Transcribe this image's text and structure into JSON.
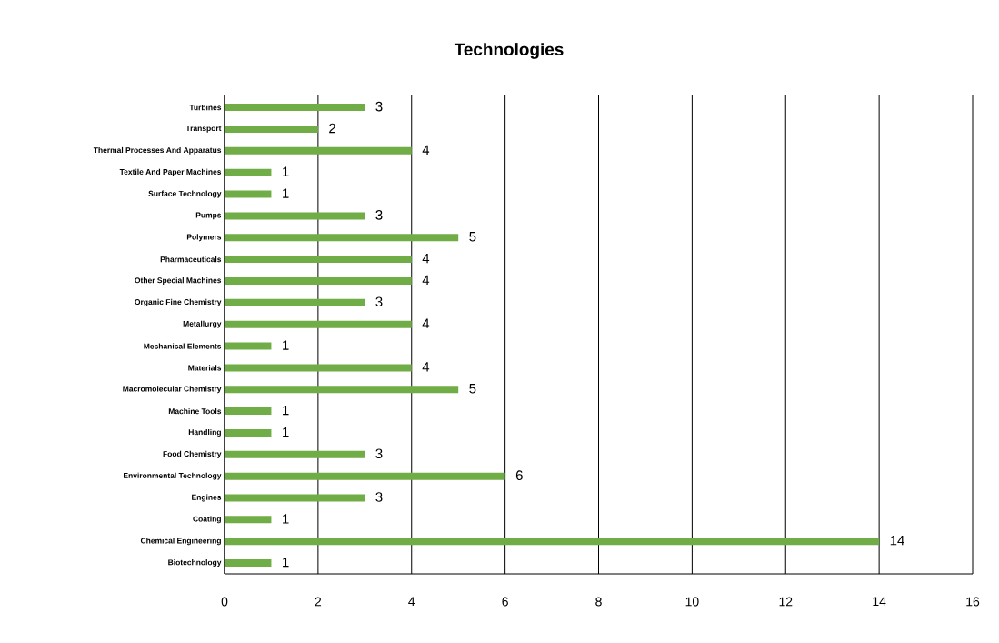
{
  "chart_data": {
    "type": "bar",
    "orientation": "horizontal",
    "title": "Technologies",
    "categories": [
      "Turbines",
      "Transport",
      "Thermal Processes And Apparatus",
      "Textile And Paper Machines",
      "Surface Technology",
      "Pumps",
      "Polymers",
      "Pharmaceuticals",
      "Other Special Machines",
      "Organic Fine Chemistry",
      "Metallurgy",
      "Mechanical Elements",
      "Materials",
      "Macromolecular Chemistry",
      "Machine Tools",
      "Handling",
      "Food Chemistry",
      "Environmental Technology",
      "Engines",
      "Coating",
      "Chemical Engineering",
      "Biotechnology"
    ],
    "values": [
      3,
      2,
      4,
      1,
      1,
      3,
      5,
      4,
      4,
      3,
      4,
      1,
      4,
      5,
      1,
      1,
      3,
      6,
      3,
      1,
      14,
      1
    ],
    "color": "#70ad47",
    "xlim": [
      0,
      16
    ],
    "xticks": [
      0,
      2,
      4,
      6,
      8,
      10,
      12,
      14,
      16
    ],
    "grid": "x",
    "data_labels": true
  }
}
